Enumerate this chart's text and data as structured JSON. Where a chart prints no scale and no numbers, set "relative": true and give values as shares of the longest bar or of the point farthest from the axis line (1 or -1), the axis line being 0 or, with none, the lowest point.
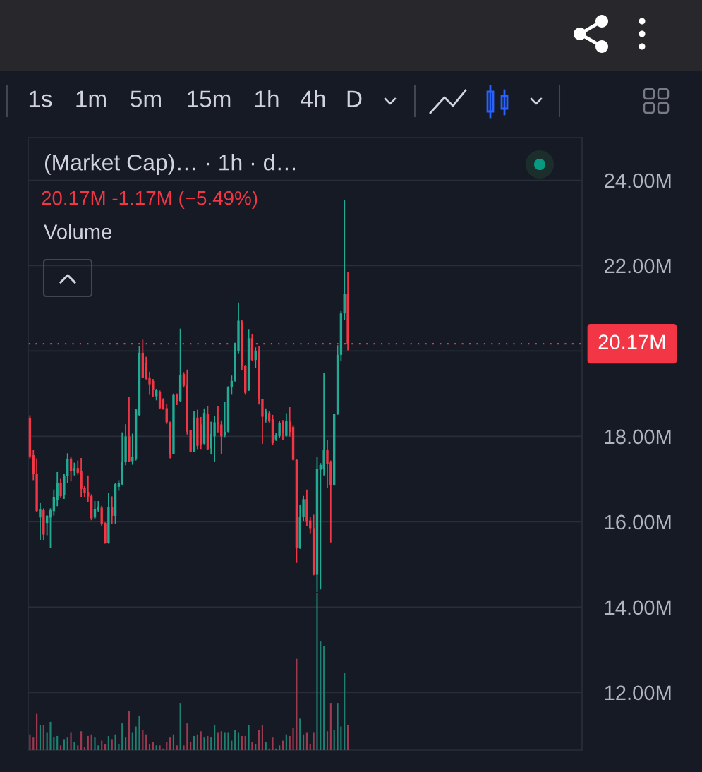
{
  "chart_data": [
    {
      "type": "candlestick",
      "title": "(Market Cap)… · 1h · d…",
      "subtitle": "20.17M -1.17M (−5.49%)",
      "annotations": [
        "1s",
        "1m",
        "5m",
        "15m",
        "1h",
        "4h",
        "D"
      ],
      "categories": [
        null,
        null,
        null,
        null,
        null,
        null,
        null,
        null,
        null,
        null,
        null,
        null,
        null,
        null,
        null,
        null,
        null,
        null,
        null,
        null,
        null,
        null,
        null,
        null,
        null,
        null,
        null,
        null,
        null,
        null,
        null,
        null,
        null,
        null,
        null,
        null,
        null,
        null,
        null,
        null,
        null,
        null,
        null,
        null,
        null,
        null,
        null,
        null,
        null,
        null,
        null,
        null,
        null,
        null,
        null,
        null,
        null,
        null,
        null,
        null,
        null,
        null,
        null,
        null,
        null,
        null,
        null,
        null,
        null,
        null,
        null,
        null,
        null,
        null,
        null,
        null,
        null,
        null,
        null,
        null,
        null,
        null,
        null,
        null,
        null,
        null,
        null,
        null,
        null,
        null,
        null,
        null,
        null,
        null,
        null,
        null,
        null,
        null,
        null,
        null,
        null,
        null,
        null,
        null,
        null,
        null,
        null,
        null,
        null,
        null,
        null,
        null,
        null,
        null,
        null,
        null,
        null,
        null,
        null,
        null,
        null,
        null,
        null,
        null,
        null,
        null,
        null,
        null,
        null,
        null,
        null,
        null,
        null,
        null,
        null,
        null,
        null,
        null,
        null,
        null,
        null,
        null,
        null,
        null,
        null,
        null,
        null,
        null,
        null,
        null,
        null,
        null,
        null,
        null,
        null,
        null,
        null,
        null,
        null,
        null,
        null,
        null
      ],
      "ohlc": [
        [
          18.43,
          18.48,
          17.5,
          17.53
        ],
        [
          17.56,
          17.67,
          16.99,
          17.12
        ],
        [
          17.12,
          17.47,
          16.25,
          16.25
        ],
        [
          16.1,
          16.42,
          15.59,
          16.3
        ],
        [
          16.27,
          16.3,
          15.59,
          15.7
        ],
        [
          15.97,
          16.14,
          15.7,
          16.14
        ],
        [
          16.1,
          16.3,
          15.4,
          16.27
        ],
        [
          16.25,
          16.74,
          16.16,
          16.58
        ],
        [
          16.52,
          17.15,
          16.38,
          16.9
        ],
        [
          16.9,
          16.99,
          16.57,
          16.6
        ],
        [
          16.63,
          17.1,
          16.55,
          17.07
        ],
        [
          17.07,
          17.59,
          16.93,
          17.48
        ],
        [
          17.48,
          17.51,
          16.96,
          17.18
        ],
        [
          17.18,
          17.37,
          17.1,
          17.26
        ],
        [
          17.26,
          17.42,
          17.12,
          17.15
        ],
        [
          17.18,
          17.48,
          16.6,
          16.77
        ],
        [
          16.79,
          16.82,
          16.6,
          16.68
        ],
        [
          16.7,
          17.07,
          16.47,
          16.59
        ],
        [
          16.6,
          16.63,
          16.05,
          16.08
        ],
        [
          16.1,
          16.47,
          16.08,
          16.3
        ],
        [
          16.27,
          16.47,
          16.25,
          16.35
        ],
        [
          16.33,
          16.36,
          15.92,
          15.94
        ],
        [
          15.97,
          15.97,
          15.5,
          15.5
        ],
        [
          15.5,
          16.66,
          15.5,
          16.35
        ],
        [
          16.35,
          16.58,
          15.97,
          16.14
        ],
        [
          16.14,
          16.9,
          15.97,
          16.88
        ],
        [
          16.82,
          16.96,
          16.74,
          16.9
        ],
        [
          16.88,
          18.08,
          16.88,
          17.4
        ],
        [
          17.4,
          18.27,
          17.34,
          18.0
        ],
        [
          18.0,
          18.9,
          17.42,
          17.42
        ],
        [
          17.42,
          18.05,
          17.35,
          17.52
        ],
        [
          17.48,
          18.63,
          17.45,
          18.63
        ],
        [
          18.5,
          20.1,
          18.5,
          19.96
        ],
        [
          19.96,
          20.25,
          19.38,
          19.38
        ],
        [
          19.71,
          19.85,
          19.35,
          19.35
        ],
        [
          19.38,
          19.5,
          18.99,
          19.22
        ],
        [
          19.3,
          19.33,
          18.94,
          19.08
        ],
        [
          18.94,
          19.1,
          18.86,
          19.08
        ],
        [
          19.05,
          19.06,
          18.66,
          18.66
        ],
        [
          18.86,
          18.88,
          18.64,
          18.64
        ],
        [
          18.66,
          18.75,
          18.3,
          18.33
        ],
        [
          18.33,
          18.33,
          17.5,
          17.59
        ],
        [
          17.59,
          18.99,
          17.59,
          18.97
        ],
        [
          18.97,
          18.99,
          18.75,
          18.83
        ],
        [
          18.83,
          20.51,
          18.83,
          19.44
        ],
        [
          19.46,
          19.49,
          19.16,
          19.19
        ],
        [
          19.19,
          19.55,
          18.06,
          18.11
        ],
        [
          18.14,
          18.14,
          17.64,
          17.64
        ],
        [
          17.64,
          18.58,
          17.64,
          18.44
        ],
        [
          18.44,
          18.61,
          17.72,
          17.78
        ],
        [
          18.28,
          18.44,
          17.72,
          17.81
        ],
        [
          17.83,
          18.64,
          17.83,
          18.55
        ],
        [
          18.52,
          18.69,
          17.7,
          17.7
        ],
        [
          17.72,
          18.33,
          17.59,
          18.06
        ],
        [
          18.0,
          18.47,
          17.42,
          18.33
        ],
        [
          18.33,
          18.69,
          18.11,
          18.28
        ],
        [
          18.28,
          18.36,
          17.61,
          18.0
        ],
        [
          18.03,
          18.8,
          18.0,
          18.11
        ],
        [
          18.11,
          19.16,
          18.11,
          19.16
        ],
        [
          19.16,
          19.41,
          18.99,
          19.3
        ],
        [
          19.3,
          20.18,
          19.3,
          20.18
        ],
        [
          19.99,
          21.12,
          19.96,
          20.71
        ],
        [
          20.68,
          20.71,
          19.57,
          19.66
        ],
        [
          19.66,
          19.66,
          18.99,
          19.02
        ],
        [
          19.08,
          20.5,
          19.08,
          20.3
        ],
        [
          20.3,
          20.39,
          19.79,
          19.79
        ],
        [
          19.79,
          20.07,
          19.61,
          20.0
        ],
        [
          20.0,
          20.09,
          18.76,
          18.87
        ],
        [
          18.87,
          18.87,
          17.84,
          18.46
        ],
        [
          18.4,
          18.64,
          18.34,
          18.58
        ],
        [
          18.55,
          18.58,
          18.34,
          18.37
        ],
        [
          18.4,
          18.49,
          17.81,
          17.84
        ],
        [
          17.93,
          18.06,
          17.91,
          18.04
        ],
        [
          18.01,
          18.34,
          17.98,
          18.31
        ],
        [
          18.34,
          18.37,
          17.93,
          18.07
        ],
        [
          18.01,
          18.53,
          18.01,
          18.37
        ],
        [
          18.35,
          18.67,
          18.01,
          18.1
        ],
        [
          18.22,
          18.25,
          17.45,
          17.45
        ],
        [
          17.45,
          17.45,
          15.05,
          15.38
        ],
        [
          15.38,
          16.39,
          15.38,
          16.12
        ],
        [
          16.12,
          16.59,
          16.03,
          16.53
        ],
        [
          16.53,
          16.74,
          15.91,
          16.0
        ],
        [
          16.03,
          16.09,
          15.73,
          15.85
        ],
        [
          15.85,
          16.15,
          14.76,
          14.76
        ],
        [
          14.76,
          17.51,
          14.37,
          17.24
        ],
        [
          17.22,
          17.36,
          14.43,
          17.33
        ],
        [
          17.24,
          19.47,
          17.1,
          17.69
        ],
        [
          17.69,
          17.9,
          16.8,
          17.36
        ],
        [
          17.39,
          17.42,
          15.53,
          16.86
        ],
        [
          16.86,
          18.52,
          16.86,
          18.52
        ],
        [
          18.52,
          20.12,
          18.52,
          19.91
        ],
        [
          19.91,
          20.92,
          19.79,
          20.88
        ],
        [
          20.88,
          23.53,
          20.74,
          21.34
        ],
        [
          21.34,
          21.84,
          20.03,
          20.17
        ],
        null,
        null,
        null,
        null,
        null,
        null,
        null,
        null,
        null,
        null,
        null,
        null,
        null,
        null,
        null,
        null,
        null,
        null,
        null,
        null,
        null,
        null,
        null,
        null,
        null,
        null,
        null,
        null,
        null,
        null,
        null,
        null,
        null,
        null,
        null,
        null,
        null,
        null,
        null,
        null,
        null,
        null,
        null,
        null,
        null,
        null,
        null,
        null,
        null,
        null,
        null,
        null,
        null,
        null,
        null,
        null,
        null,
        null,
        null,
        null,
        null,
        null,
        null,
        null,
        null,
        null,
        null,
        null
      ],
      "colors": [
        "#f23645",
        "#f23645",
        "#f23645",
        "#22ab94",
        "#f23645",
        "#22ab94",
        "#22ab94",
        "#22ab94",
        "#22ab94",
        "#f23645",
        "#22ab94",
        "#22ab94",
        "#f23645",
        "#22ab94",
        "#f23645",
        "#f23645",
        "#f23645",
        "#f23645",
        "#f23645",
        "#22ab94",
        "#22ab94",
        "#f23645",
        "#f23645",
        "#22ab94",
        "#f23645",
        "#22ab94",
        "#22ab94",
        "#22ab94",
        "#22ab94",
        "#f23645",
        "#22ab94",
        "#22ab94",
        "#22ab94",
        "#f23645",
        "#f23645",
        "#f23645",
        "#f23645",
        "#22ab94",
        "#f23645",
        "#f23645",
        "#f23645",
        "#f23645",
        "#22ab94",
        "#f23645",
        "#22ab94",
        "#f23645",
        "#f23645",
        "#f23645",
        "#22ab94",
        "#f23645",
        "#f23645",
        "#22ab94",
        "#f23645",
        "#22ab94",
        "#22ab94",
        "#f23645",
        "#f23645",
        "#22ab94",
        "#22ab94",
        "#22ab94",
        "#22ab94",
        "#22ab94",
        "#f23645",
        "#f23645",
        "#22ab94",
        "#f23645",
        "#22ab94",
        "#f23645",
        "#f23645",
        "#22ab94",
        "#f23645",
        "#f23645",
        "#22ab94",
        "#22ab94",
        "#f23645",
        "#22ab94",
        "#f23645",
        "#f23645",
        "#f23645",
        "#22ab94",
        "#22ab94",
        "#f23645",
        "#f23645",
        "#f23645",
        "#22ab94",
        "#22ab94",
        "#22ab94",
        "#f23645",
        "#f23645",
        "#22ab94",
        "#22ab94",
        "#22ab94",
        "#22ab94",
        "#f23645",
        null,
        null,
        null,
        null,
        null,
        null,
        null,
        null,
        null,
        null,
        null,
        null,
        null,
        null,
        null,
        null,
        null,
        null,
        null,
        null,
        null,
        null,
        null,
        null,
        null,
        null,
        null,
        null,
        null,
        null,
        null,
        null,
        null,
        null,
        null,
        null,
        null,
        null,
        null,
        null,
        null,
        null,
        null,
        null,
        null,
        null,
        null,
        null,
        null,
        null,
        null,
        null,
        null,
        null,
        null,
        null,
        null,
        null,
        null,
        null,
        null,
        null,
        null,
        null,
        null,
        null,
        null,
        null
      ],
      "ylim": [
        10.65,
        25.0
      ],
      "yticks": [
        {
          "value": 12,
          "label": "12.00M"
        },
        {
          "value": 14,
          "label": "14.00M"
        },
        {
          "value": 16,
          "label": "16.00M"
        },
        {
          "value": 18,
          "label": "18.00M"
        },
        {
          "value": 20,
          "label": null
        },
        {
          "value": 22,
          "label": "22.00M"
        },
        {
          "value": 24,
          "label": "24.00M"
        }
      ],
      "tick_labels": "y",
      "grid": "y",
      "ref_lines": [
        {
          "axis": "y",
          "value": 20.17,
          "label": "20.17M",
          "color": "#f23645",
          "line_style": "dotted"
        }
      ]
    },
    {
      "type": "bar",
      "title": "Volume",
      "relative": true,
      "tick_labels": false,
      "categories": [
        null,
        null,
        null,
        null,
        null,
        null,
        null,
        null,
        null,
        null,
        null,
        null,
        null,
        null,
        null,
        null,
        null,
        null,
        null,
        null,
        null,
        null,
        null,
        null,
        null,
        null,
        null,
        null,
        null,
        null,
        null,
        null,
        null,
        null,
        null,
        null,
        null,
        null,
        null,
        null,
        null,
        null,
        null,
        null,
        null,
        null,
        null,
        null,
        null,
        null,
        null,
        null,
        null,
        null,
        null,
        null,
        null,
        null,
        null,
        null,
        null,
        null,
        null,
        null,
        null,
        null,
        null,
        null,
        null,
        null,
        null,
        null,
        null,
        null,
        null,
        null,
        null,
        null,
        null,
        null,
        null,
        null,
        null,
        null,
        null,
        null,
        null,
        null,
        null,
        null,
        null,
        null,
        null,
        null,
        null,
        null,
        null,
        null,
        null,
        null,
        null,
        null,
        null,
        null,
        null,
        null,
        null,
        null,
        null,
        null,
        null,
        null,
        null,
        null,
        null,
        null,
        null,
        null,
        null,
        null,
        null,
        null,
        null,
        null,
        null,
        null,
        null,
        null,
        null,
        null,
        null,
        null,
        null,
        null,
        null,
        null,
        null,
        null,
        null,
        null,
        null,
        null,
        null,
        null,
        null,
        null,
        null,
        null,
        null,
        null,
        null,
        null,
        null,
        null,
        null,
        null,
        null,
        null,
        null,
        null,
        null,
        null
      ],
      "values": [
        0.1,
        0.08,
        0.23,
        0.16,
        0.16,
        0.11,
        0.18,
        0.08,
        0.09,
        0.03,
        0.07,
        0.08,
        0.11,
        0.05,
        0.03,
        0.12,
        0.02,
        0.09,
        0.1,
        0.08,
        0.03,
        0.06,
        0.04,
        0.09,
        0.07,
        0.1,
        0.04,
        0.17,
        0.08,
        0.25,
        0.11,
        0.15,
        0.22,
        0.13,
        0.1,
        0.04,
        0.05,
        0.03,
        0.03,
        0.01,
        0.05,
        0.08,
        0.1,
        0.03,
        0.3,
        0.03,
        0.17,
        0.05,
        0.09,
        0.1,
        0.12,
        0.08,
        0.09,
        0.08,
        0.16,
        0.11,
        0.12,
        0.11,
        0.11,
        0.06,
        0.13,
        0.11,
        0.09,
        0.09,
        0.16,
        0.05,
        0.04,
        0.13,
        0.16,
        0.05,
        0.01,
        0.08,
        0.01,
        0.03,
        0.06,
        0.1,
        0.09,
        0.14,
        0.58,
        0.2,
        0.1,
        0.11,
        0.04,
        0.11,
        1,
        0.69,
        0.66,
        0.12,
        0.3,
        0.13,
        0.3,
        0.15,
        0.49,
        0.16,
        null,
        null,
        null,
        null,
        null,
        null,
        null,
        null,
        null,
        null,
        null,
        null,
        null,
        null,
        null,
        null,
        null,
        null,
        null,
        null,
        null,
        null,
        null,
        null,
        null,
        null,
        null,
        null,
        null,
        null,
        null,
        null,
        null,
        null,
        null,
        null,
        null,
        null,
        null,
        null,
        null,
        null,
        null,
        null,
        null,
        null,
        null,
        null,
        null,
        null,
        null,
        null,
        null,
        null,
        null,
        null,
        null,
        null,
        null,
        null,
        null,
        null,
        null,
        null,
        null,
        null,
        null,
        null
      ],
      "colors": [
        "#9e3a4f",
        "#9e3a4f",
        "#9e3a4f",
        "#1d8072",
        "#9e3a4f",
        "#1d8072",
        "#1d8072",
        "#1d8072",
        "#1d8072",
        "#9e3a4f",
        "#1d8072",
        "#1d8072",
        "#9e3a4f",
        "#1d8072",
        "#9e3a4f",
        "#9e3a4f",
        "#9e3a4f",
        "#9e3a4f",
        "#9e3a4f",
        "#1d8072",
        "#1d8072",
        "#9e3a4f",
        "#9e3a4f",
        "#1d8072",
        "#9e3a4f",
        "#1d8072",
        "#1d8072",
        "#1d8072",
        "#1d8072",
        "#9e3a4f",
        "#1d8072",
        "#1d8072",
        "#1d8072",
        "#9e3a4f",
        "#9e3a4f",
        "#9e3a4f",
        "#9e3a4f",
        "#1d8072",
        "#9e3a4f",
        "#9e3a4f",
        "#9e3a4f",
        "#9e3a4f",
        "#1d8072",
        "#9e3a4f",
        "#1d8072",
        "#9e3a4f",
        "#9e3a4f",
        "#9e3a4f",
        "#1d8072",
        "#9e3a4f",
        "#9e3a4f",
        "#1d8072",
        "#9e3a4f",
        "#1d8072",
        "#1d8072",
        "#9e3a4f",
        "#9e3a4f",
        "#1d8072",
        "#1d8072",
        "#1d8072",
        "#1d8072",
        "#1d8072",
        "#9e3a4f",
        "#9e3a4f",
        "#1d8072",
        "#9e3a4f",
        "#1d8072",
        "#9e3a4f",
        "#9e3a4f",
        "#1d8072",
        "#9e3a4f",
        "#9e3a4f",
        "#1d8072",
        "#1d8072",
        "#9e3a4f",
        "#1d8072",
        "#9e3a4f",
        "#9e3a4f",
        "#9e3a4f",
        "#1d8072",
        "#1d8072",
        "#9e3a4f",
        "#9e3a4f",
        "#9e3a4f",
        "#1d8072",
        "#1d8072",
        "#1d8072",
        "#9e3a4f",
        "#9e3a4f",
        "#1d8072",
        "#1d8072",
        "#1d8072",
        "#1d8072",
        "#9e3a4f",
        null,
        null,
        null,
        null,
        null,
        null,
        null,
        null,
        null,
        null,
        null,
        null,
        null,
        null,
        null,
        null,
        null,
        null,
        null,
        null,
        null,
        null,
        null,
        null,
        null,
        null,
        null,
        null,
        null,
        null,
        null,
        null,
        null,
        null,
        null,
        null,
        null,
        null,
        null,
        null,
        null,
        null,
        null,
        null,
        null,
        null,
        null,
        null,
        null,
        null,
        null,
        null,
        null,
        null,
        null,
        null,
        null,
        null,
        null,
        null,
        null,
        null,
        null,
        null,
        null,
        null,
        null,
        null
      ]
    }
  ]
}
